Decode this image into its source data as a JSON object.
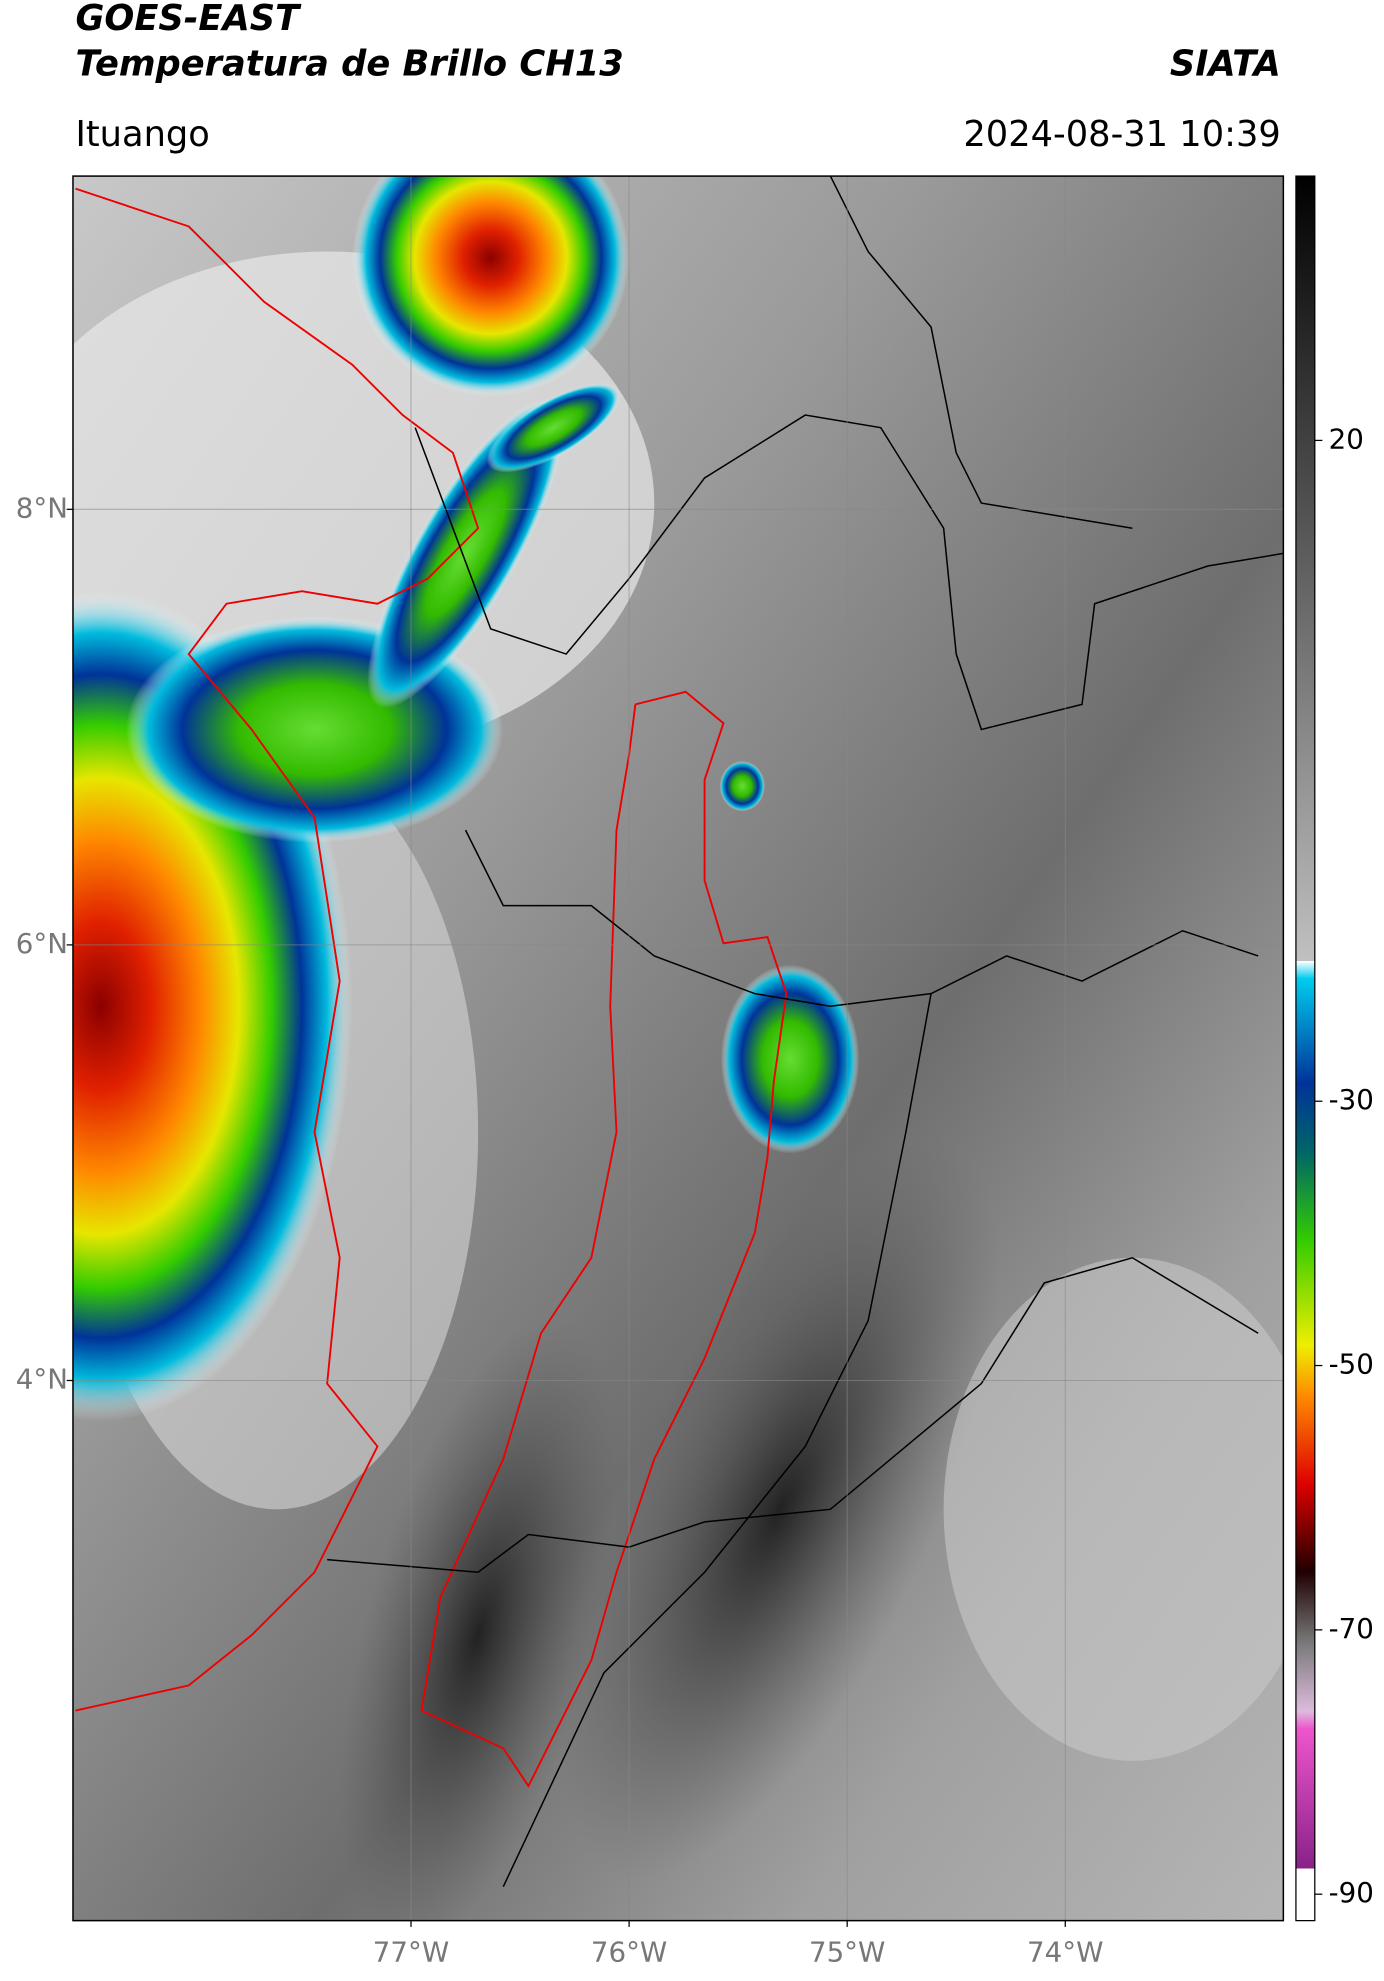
{
  "header": {
    "title": "GOES-EAST",
    "subtitle": "Temperatura de Brillo CH13",
    "org": "SIATA",
    "place": "Ituango",
    "datetime": "2024-08-31 10:39"
  },
  "map": {
    "lon_range": [
      -78.55,
      -73.0
    ],
    "lat_range": [
      1.52,
      9.53
    ],
    "lat_ticks": [
      {
        "value": 8,
        "label": "8°N"
      },
      {
        "value": 6,
        "label": "6°N"
      },
      {
        "value": 4,
        "label": "4°N"
      }
    ],
    "lon_ticks": [
      {
        "value": -77,
        "label": "77°W"
      },
      {
        "value": -76,
        "label": "76°W"
      },
      {
        "value": -75,
        "label": "75°W"
      },
      {
        "value": -74,
        "label": "74°W"
      }
    ]
  },
  "colorbar": {
    "range": [
      -92,
      40
    ],
    "ticks": [
      20,
      -30,
      -50,
      -70,
      -90
    ]
  }
}
